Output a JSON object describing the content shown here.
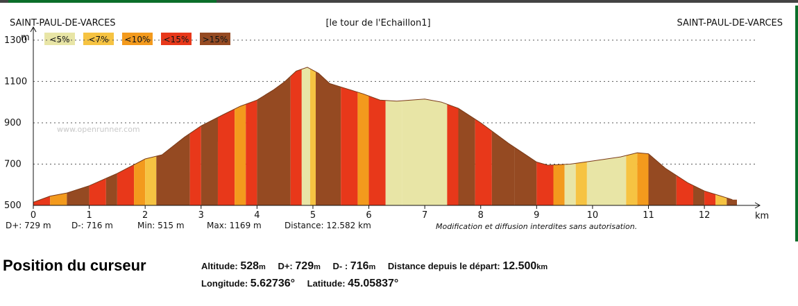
{
  "header": {
    "start_place": "SAINT-PAUL-DE-VARCES",
    "route_name": "[le tour de l'Echaillon1]",
    "end_place": "SAINT-PAUL-DE-VARCES",
    "watermark": "www.openrunner.com"
  },
  "chart_data": {
    "type": "area",
    "ylabel": "m",
    "xlabel": "km",
    "xlim": [
      0,
      12.582
    ],
    "ylim": [
      500,
      1350
    ],
    "y_ticks": [
      500,
      700,
      900,
      1100,
      1300
    ],
    "x_ticks": [
      0,
      1,
      2,
      3,
      4,
      5,
      6,
      7,
      8,
      9,
      10,
      11,
      12
    ],
    "grid": true,
    "legend": [
      {
        "label": "<5%",
        "color": "#e8e5a6"
      },
      {
        "label": "<7%",
        "color": "#f6c342"
      },
      {
        "label": "<10%",
        "color": "#f39a1d"
      },
      {
        "label": "<15%",
        "color": "#e8381a"
      },
      {
        "label": ">15%",
        "color": "#954a22"
      }
    ],
    "profile": {
      "x": [
        0,
        0.3,
        0.6,
        1.0,
        1.5,
        2.0,
        2.3,
        2.7,
        3.0,
        3.4,
        3.7,
        4.0,
        4.3,
        4.5,
        4.7,
        4.9,
        5.1,
        5.3,
        5.6,
        5.9,
        6.2,
        6.5,
        7.0,
        7.3,
        7.6,
        8.0,
        8.5,
        9.0,
        9.2,
        9.6,
        10.0,
        10.5,
        10.8,
        11.0,
        11.3,
        11.7,
        12.0,
        12.3,
        12.5
      ],
      "y": [
        515,
        545,
        560,
        595,
        655,
        725,
        745,
        830,
        885,
        940,
        980,
        1010,
        1060,
        1100,
        1150,
        1169,
        1140,
        1090,
        1065,
        1040,
        1010,
        1005,
        1015,
        1000,
        970,
        900,
        800,
        710,
        695,
        700,
        715,
        735,
        755,
        750,
        680,
        610,
        570,
        545,
        528
      ]
    },
    "segments": [
      [
        0,
        0.3,
        3
      ],
      [
        0.3,
        0.6,
        2
      ],
      [
        0.6,
        1.0,
        4
      ],
      [
        1.0,
        1.3,
        3
      ],
      [
        1.3,
        1.5,
        4
      ],
      [
        1.5,
        1.8,
        3
      ],
      [
        1.8,
        2.0,
        2
      ],
      [
        2.0,
        2.2,
        1
      ],
      [
        2.2,
        2.8,
        4
      ],
      [
        2.8,
        3.0,
        3
      ],
      [
        3.0,
        3.3,
        4
      ],
      [
        3.3,
        3.6,
        3
      ],
      [
        3.6,
        3.8,
        2
      ],
      [
        3.8,
        4.0,
        3
      ],
      [
        4.0,
        4.6,
        4
      ],
      [
        4.6,
        4.8,
        3
      ],
      [
        4.8,
        4.95,
        0
      ],
      [
        4.95,
        5.05,
        1
      ],
      [
        5.05,
        5.5,
        4
      ],
      [
        5.5,
        5.8,
        3
      ],
      [
        5.8,
        6.0,
        2
      ],
      [
        6.0,
        6.3,
        3
      ],
      [
        6.3,
        6.6,
        0
      ],
      [
        6.6,
        7.4,
        0
      ],
      [
        7.4,
        7.6,
        3
      ],
      [
        7.6,
        7.9,
        4
      ],
      [
        7.9,
        8.2,
        3
      ],
      [
        8.2,
        8.6,
        4
      ],
      [
        8.6,
        9.0,
        4
      ],
      [
        9.0,
        9.3,
        3
      ],
      [
        9.3,
        9.5,
        2
      ],
      [
        9.5,
        9.7,
        0
      ],
      [
        9.7,
        9.9,
        1
      ],
      [
        9.9,
        10.6,
        0
      ],
      [
        10.6,
        10.8,
        1
      ],
      [
        10.8,
        11.0,
        2
      ],
      [
        11.0,
        11.5,
        4
      ],
      [
        11.5,
        11.8,
        3
      ],
      [
        11.8,
        12.0,
        4
      ],
      [
        12.0,
        12.2,
        3
      ],
      [
        12.2,
        12.4,
        1
      ],
      [
        12.4,
        12.582,
        4
      ]
    ]
  },
  "stats": {
    "d_plus": "D+: 729 m",
    "d_minus": "D-: 716 m",
    "min": "Min: 515 m",
    "max": "Max: 1169 m",
    "distance": "Distance: 12.582 km",
    "notice": "Modification et diffusion interdites sans autorisation."
  },
  "cursor": {
    "title": "Position du curseur",
    "altitude_label": "Altitude:",
    "altitude_value": "528",
    "altitude_unit": "m",
    "dplus_label": "D+:",
    "dplus_value": "729",
    "dplus_unit": "m",
    "dminus_label": "D- :",
    "dminus_value": "716",
    "dminus_unit": "m",
    "distance_label": "Distance depuis le départ:",
    "distance_value": "12.500",
    "distance_unit": "km",
    "longitude_label": "Longitude:",
    "longitude_value": "5.62736°",
    "latitude_label": "Latitude:",
    "latitude_value": "45.05837°"
  }
}
